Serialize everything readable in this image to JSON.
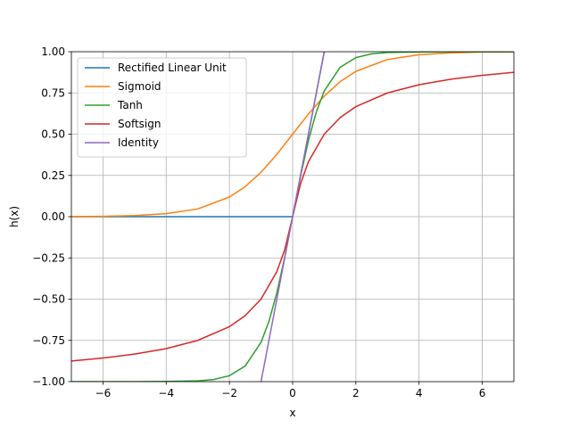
{
  "chart_data": {
    "type": "line",
    "title": "",
    "xlabel": "x",
    "ylabel": "h(x)",
    "xlim": [
      -7,
      7
    ],
    "ylim": [
      -1,
      1
    ],
    "grid": true,
    "legend_position": "top-left",
    "xticks": [
      -6,
      -4,
      -2,
      0,
      2,
      4,
      6
    ],
    "xtick_labels": [
      "−6",
      "−4",
      "−2",
      "0",
      "2",
      "4",
      "6"
    ],
    "yticks": [
      -1.0,
      -0.75,
      -0.5,
      -0.25,
      0.0,
      0.25,
      0.5,
      0.75,
      1.0
    ],
    "ytick_labels": [
      "−1.00",
      "−0.75",
      "−0.50",
      "−0.25",
      "0.00",
      "0.25",
      "0.50",
      "0.75",
      "1.00"
    ],
    "series": [
      {
        "name": "Rectified Linear Unit",
        "color": "#1f77b4",
        "x": [
          -7,
          -6,
          -5,
          -4,
          -3,
          -2,
          -1,
          0,
          0.25,
          0.5,
          0.75,
          1,
          1.25
        ],
        "y": [
          0,
          0,
          0,
          0,
          0,
          0,
          0,
          0,
          0.25,
          0.5,
          0.75,
          1,
          1.25
        ]
      },
      {
        "name": "Sigmoid",
        "color": "#ff7f0e",
        "x": [
          -7,
          -6,
          -5,
          -4,
          -3,
          -2,
          -1.5,
          -1,
          -0.5,
          0,
          0.5,
          1,
          1.5,
          2,
          3,
          4,
          5,
          6,
          7
        ],
        "y": [
          0.001,
          0.002,
          0.007,
          0.018,
          0.047,
          0.119,
          0.182,
          0.269,
          0.378,
          0.5,
          0.622,
          0.731,
          0.818,
          0.881,
          0.953,
          0.982,
          0.993,
          0.998,
          0.999
        ]
      },
      {
        "name": "Tanh",
        "color": "#2ca02c",
        "x": [
          -7,
          -5,
          -4,
          -3,
          -2.5,
          -2,
          -1.5,
          -1,
          -0.75,
          -0.5,
          -0.25,
          0,
          0.25,
          0.5,
          0.75,
          1,
          1.5,
          2,
          2.5,
          3,
          4,
          5,
          7
        ],
        "y": [
          -1.0,
          -1.0,
          -0.999,
          -0.995,
          -0.987,
          -0.964,
          -0.905,
          -0.762,
          -0.635,
          -0.462,
          -0.245,
          0,
          0.245,
          0.462,
          0.635,
          0.762,
          0.905,
          0.964,
          0.987,
          0.995,
          0.999,
          1.0,
          1.0
        ]
      },
      {
        "name": "Softsign",
        "color": "#d62728",
        "x": [
          -7,
          -6,
          -5,
          -4,
          -3,
          -2,
          -1.5,
          -1,
          -0.5,
          -0.25,
          0,
          0.25,
          0.5,
          1,
          1.5,
          2,
          3,
          4,
          5,
          6,
          7
        ],
        "y": [
          -0.875,
          -0.857,
          -0.833,
          -0.8,
          -0.75,
          -0.667,
          -0.6,
          -0.5,
          -0.333,
          -0.2,
          0,
          0.2,
          0.333,
          0.5,
          0.6,
          0.667,
          0.75,
          0.8,
          0.833,
          0.857,
          0.875
        ]
      },
      {
        "name": "Identity",
        "color": "#9467bd",
        "x": [
          -1.0,
          1.0
        ],
        "y": [
          -1.0,
          1.0
        ]
      }
    ]
  }
}
